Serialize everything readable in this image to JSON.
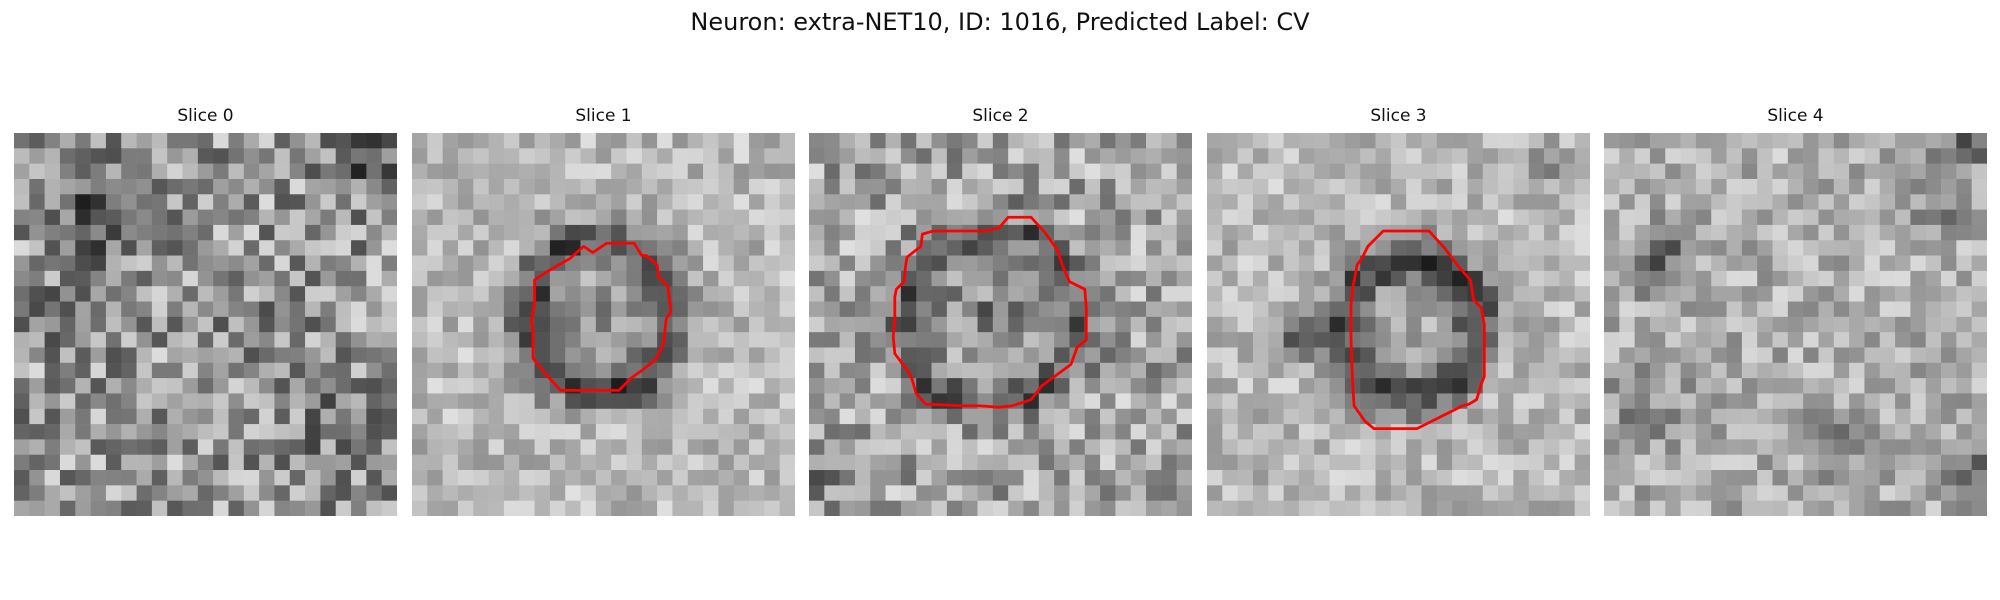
{
  "figure": {
    "title": "Neuron: extra-NET10, ID: 1016, Predicted Label: CV"
  },
  "colors": {
    "contour": "#ff0000",
    "colormap": "gray"
  },
  "grid_size": 25,
  "panels": [
    {
      "label": "Slice 0",
      "contour": []
    },
    {
      "label": "Slice 1",
      "contour": [
        [
          11.8,
          7.8
        ],
        [
          12.7,
          7.2
        ],
        [
          14.5,
          7.2
        ],
        [
          15.0,
          8.0
        ],
        [
          15.3,
          8.0
        ],
        [
          16.0,
          8.6
        ],
        [
          16.1,
          9.4
        ],
        [
          16.7,
          10.0
        ],
        [
          16.9,
          11.7
        ],
        [
          16.6,
          12.1
        ],
        [
          16.4,
          13.8
        ],
        [
          15.9,
          14.8
        ],
        [
          15.0,
          15.5
        ],
        [
          14.3,
          16.0
        ],
        [
          13.5,
          16.8
        ],
        [
          9.7,
          16.8
        ],
        [
          8.6,
          15.6
        ],
        [
          7.9,
          14.7
        ],
        [
          7.9,
          13.0
        ],
        [
          7.8,
          12.3
        ],
        [
          8.0,
          11.0
        ],
        [
          8.0,
          9.6
        ],
        [
          8.9,
          9.0
        ],
        [
          10.3,
          8.2
        ],
        [
          11.2,
          7.4
        ]
      ]
    },
    {
      "label": "Slice 2",
      "contour": [
        [
          7.4,
          6.6
        ],
        [
          8.1,
          6.4
        ],
        [
          9.4,
          6.4
        ],
        [
          11.5,
          6.4
        ],
        [
          12.4,
          6.2
        ],
        [
          13.0,
          5.5
        ],
        [
          14.5,
          5.5
        ],
        [
          15.4,
          6.5
        ],
        [
          16.2,
          7.6
        ],
        [
          16.6,
          8.8
        ],
        [
          17.0,
          9.7
        ],
        [
          18.0,
          10.2
        ],
        [
          18.1,
          11.4
        ],
        [
          18.1,
          13.5
        ],
        [
          17.5,
          14.0
        ],
        [
          17.1,
          15.1
        ],
        [
          15.2,
          16.5
        ],
        [
          14.5,
          17.4
        ],
        [
          13.9,
          17.6
        ],
        [
          13.3,
          17.8
        ],
        [
          12.4,
          17.9
        ],
        [
          11.1,
          17.8
        ],
        [
          10.0,
          17.8
        ],
        [
          7.6,
          17.7
        ],
        [
          7.0,
          17.0
        ],
        [
          6.7,
          16.0
        ],
        [
          6.5,
          15.6
        ],
        [
          5.9,
          14.8
        ],
        [
          5.6,
          14.4
        ],
        [
          5.5,
          13.3
        ],
        [
          5.6,
          12.1
        ],
        [
          5.6,
          10.7
        ],
        [
          5.7,
          10.2
        ],
        [
          6.2,
          9.7
        ],
        [
          6.3,
          8.7
        ],
        [
          6.4,
          8.1
        ],
        [
          7.3,
          7.4
        ]
      ]
    },
    {
      "label": "Slice 3",
      "contour": [
        [
          10.5,
          7.4
        ],
        [
          11.5,
          6.4
        ],
        [
          14.5,
          6.4
        ],
        [
          15.5,
          7.5
        ],
        [
          16.4,
          8.7
        ],
        [
          17.2,
          9.6
        ],
        [
          17.4,
          10.9
        ],
        [
          17.9,
          11.4
        ],
        [
          18.1,
          12.5
        ],
        [
          18.1,
          15.9
        ],
        [
          17.9,
          16.4
        ],
        [
          17.6,
          17.4
        ],
        [
          17.1,
          17.7
        ],
        [
          16.7,
          17.8
        ],
        [
          15.3,
          18.5
        ],
        [
          13.7,
          19.3
        ],
        [
          12.4,
          19.3
        ],
        [
          10.9,
          19.3
        ],
        [
          10.3,
          18.8
        ],
        [
          9.6,
          17.8
        ],
        [
          9.5,
          16.3
        ],
        [
          9.4,
          13.4
        ],
        [
          9.4,
          11.3
        ],
        [
          9.5,
          10.2
        ],
        [
          9.8,
          8.6
        ],
        [
          10.1,
          8.2
        ]
      ]
    },
    {
      "label": "Slice 4",
      "contour": []
    }
  ]
}
